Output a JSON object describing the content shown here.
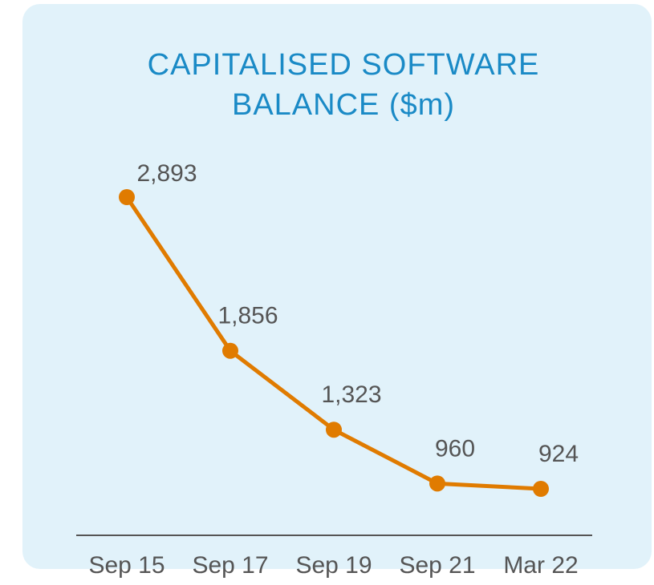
{
  "chart_data": {
    "type": "line",
    "title": "CAPITALISED SOFTWARE BALANCE ($m)",
    "categories": [
      "Sep 15",
      "Sep 17",
      "Sep 19",
      "Sep 21",
      "Mar 22"
    ],
    "values": [
      2893,
      1856,
      1323,
      960,
      924
    ],
    "value_labels": [
      "2,893",
      "1,856",
      "1,323",
      "960",
      "924"
    ],
    "color": "#e07b00"
  }
}
